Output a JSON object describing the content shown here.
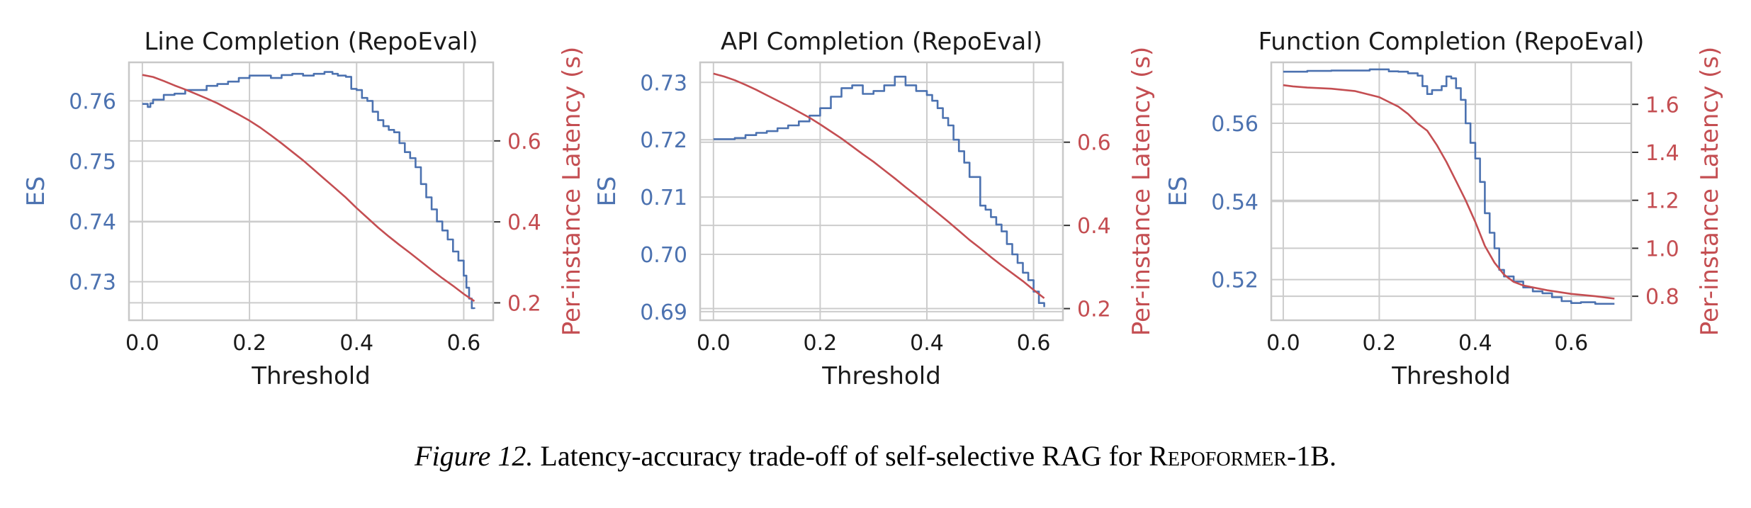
{
  "colors": {
    "es": "#4c72b0",
    "latency": "#c44e52",
    "grid": "#cccccc",
    "frame": "#c8c8c8"
  },
  "caption": {
    "figure_number": "Figure 12.",
    "text_before": "Latency-accuracy trade-off of self-selective RAG for",
    "model_name": "Repoformer",
    "model_suffix": "-1B."
  },
  "chart_data": [
    {
      "type": "line",
      "title": "Line Completion (RepoEval)",
      "xlabel": "Threshold",
      "ylabel": "ES",
      "y2label": "Per-instance Latency (s)",
      "xlim": [
        -0.025,
        0.655
      ],
      "ylim": [
        0.7236,
        0.7664
      ],
      "y2lim": [
        0.157,
        0.794
      ],
      "xticks": [
        "0.0",
        "0.2",
        "0.4",
        "0.6"
      ],
      "yticks": [
        "0.73",
        "0.74",
        "0.75",
        "0.76"
      ],
      "y2ticks": [
        "0.2",
        "0.4",
        "0.6"
      ],
      "grid": true,
      "series": [
        {
          "axis": "left",
          "step": true,
          "x": [
            0.0,
            0.01,
            0.015,
            0.02,
            0.04,
            0.06,
            0.08,
            0.1,
            0.12,
            0.14,
            0.16,
            0.18,
            0.2,
            0.22,
            0.24,
            0.26,
            0.28,
            0.3,
            0.32,
            0.34,
            0.355,
            0.365,
            0.38,
            0.39,
            0.4,
            0.41,
            0.42,
            0.43,
            0.44,
            0.45,
            0.46,
            0.47,
            0.48,
            0.49,
            0.5,
            0.51,
            0.52,
            0.53,
            0.54,
            0.55,
            0.56,
            0.57,
            0.58,
            0.59,
            0.6,
            0.605,
            0.61,
            0.615,
            0.62
          ],
          "values": [
            0.7595,
            0.759,
            0.7596,
            0.7602,
            0.761,
            0.7612,
            0.7618,
            0.7618,
            0.7625,
            0.7628,
            0.7632,
            0.7638,
            0.7642,
            0.7642,
            0.7638,
            0.7643,
            0.7645,
            0.7642,
            0.7645,
            0.7648,
            0.7645,
            0.7642,
            0.764,
            0.762,
            0.7618,
            0.7605,
            0.76,
            0.7582,
            0.7568,
            0.7558,
            0.7552,
            0.7548,
            0.753,
            0.7515,
            0.7505,
            0.749,
            0.7462,
            0.744,
            0.742,
            0.74,
            0.7385,
            0.737,
            0.735,
            0.7335,
            0.731,
            0.729,
            0.7272,
            0.7256,
            0.7255
          ]
        },
        {
          "axis": "right",
          "step": false,
          "x": [
            0.0,
            0.02,
            0.04,
            0.06,
            0.08,
            0.1,
            0.12,
            0.14,
            0.16,
            0.18,
            0.2,
            0.22,
            0.24,
            0.26,
            0.28,
            0.3,
            0.32,
            0.34,
            0.36,
            0.38,
            0.4,
            0.42,
            0.44,
            0.46,
            0.48,
            0.5,
            0.52,
            0.54,
            0.56,
            0.58,
            0.6,
            0.62
          ],
          "values": [
            0.763,
            0.758,
            0.748,
            0.737,
            0.727,
            0.716,
            0.705,
            0.693,
            0.679,
            0.665,
            0.65,
            0.633,
            0.614,
            0.594,
            0.573,
            0.552,
            0.529,
            0.506,
            0.483,
            0.46,
            0.434,
            0.41,
            0.386,
            0.364,
            0.343,
            0.323,
            0.302,
            0.281,
            0.261,
            0.242,
            0.222,
            0.204
          ]
        }
      ]
    },
    {
      "type": "line",
      "title": "API Completion (RepoEval)",
      "xlabel": "Threshold",
      "ylabel": "ES",
      "y2label": "Per-instance Latency (s)",
      "xlim": [
        -0.025,
        0.655
      ],
      "ylim": [
        0.6885,
        0.7335
      ],
      "y2lim": [
        0.172,
        0.792
      ],
      "xticks": [
        "0.0",
        "0.2",
        "0.4",
        "0.6"
      ],
      "yticks": [
        "0.69",
        "0.70",
        "0.71",
        "0.72",
        "0.73"
      ],
      "y2ticks": [
        "0.2",
        "0.4",
        "0.6"
      ],
      "grid": true,
      "series": [
        {
          "axis": "left",
          "step": true,
          "x": [
            0.0,
            0.02,
            0.04,
            0.06,
            0.08,
            0.1,
            0.12,
            0.14,
            0.16,
            0.18,
            0.2,
            0.22,
            0.24,
            0.26,
            0.28,
            0.3,
            0.32,
            0.34,
            0.36,
            0.38,
            0.4,
            0.41,
            0.42,
            0.43,
            0.44,
            0.45,
            0.46,
            0.47,
            0.48,
            0.5,
            0.51,
            0.52,
            0.53,
            0.54,
            0.55,
            0.56,
            0.57,
            0.58,
            0.59,
            0.6,
            0.61,
            0.62
          ],
          "values": [
            0.7201,
            0.7201,
            0.7203,
            0.7208,
            0.7212,
            0.7215,
            0.722,
            0.7225,
            0.7232,
            0.7242,
            0.7255,
            0.7275,
            0.729,
            0.7295,
            0.728,
            0.7285,
            0.7295,
            0.731,
            0.7295,
            0.7285,
            0.7278,
            0.7268,
            0.7255,
            0.7238,
            0.7225,
            0.72,
            0.718,
            0.716,
            0.7135,
            0.7085,
            0.7078,
            0.7065,
            0.7052,
            0.704,
            0.7018,
            0.7,
            0.6985,
            0.6968,
            0.6955,
            0.6935,
            0.6915,
            0.6908
          ]
        },
        {
          "axis": "right",
          "step": false,
          "x": [
            0.0,
            0.02,
            0.04,
            0.06,
            0.08,
            0.1,
            0.12,
            0.14,
            0.16,
            0.18,
            0.2,
            0.22,
            0.24,
            0.26,
            0.28,
            0.3,
            0.32,
            0.34,
            0.36,
            0.38,
            0.4,
            0.42,
            0.44,
            0.46,
            0.48,
            0.5,
            0.52,
            0.54,
            0.56,
            0.58,
            0.6,
            0.62
          ],
          "values": [
            0.765,
            0.758,
            0.749,
            0.738,
            0.726,
            0.713,
            0.7,
            0.687,
            0.673,
            0.659,
            0.643,
            0.626,
            0.609,
            0.59,
            0.571,
            0.553,
            0.533,
            0.513,
            0.492,
            0.472,
            0.451,
            0.43,
            0.409,
            0.387,
            0.365,
            0.345,
            0.324,
            0.304,
            0.285,
            0.266,
            0.245,
            0.225
          ]
        }
      ]
    },
    {
      "type": "line",
      "title": "Function Completion (RepoEval)",
      "xlabel": "Threshold",
      "ylabel": "ES",
      "y2label": "Per-instance Latency (s)",
      "xlim": [
        -0.025,
        0.725
      ],
      "ylim": [
        0.5096,
        0.5756
      ],
      "y2lim": [
        0.7,
        1.775
      ],
      "xticks": [
        "0.0",
        "0.2",
        "0.4",
        "0.6"
      ],
      "yticks": [
        "0.52",
        "0.54",
        "0.56"
      ],
      "y2ticks": [
        "0.8",
        "1.0",
        "1.2",
        "1.4",
        "1.6"
      ],
      "grid": true,
      "series": [
        {
          "axis": "left",
          "step": true,
          "x": [
            0.0,
            0.02,
            0.05,
            0.1,
            0.15,
            0.18,
            0.2,
            0.22,
            0.24,
            0.26,
            0.28,
            0.29,
            0.3,
            0.31,
            0.33,
            0.34,
            0.35,
            0.36,
            0.37,
            0.38,
            0.39,
            0.4,
            0.41,
            0.42,
            0.43,
            0.44,
            0.45,
            0.46,
            0.48,
            0.5,
            0.52,
            0.54,
            0.56,
            0.58,
            0.6,
            0.62,
            0.65,
            0.69
          ],
          "values": [
            0.5732,
            0.5732,
            0.5734,
            0.5735,
            0.5735,
            0.5738,
            0.5738,
            0.5733,
            0.5732,
            0.5728,
            0.5722,
            0.5695,
            0.5675,
            0.5685,
            0.5695,
            0.572,
            0.5715,
            0.569,
            0.566,
            0.56,
            0.555,
            0.551,
            0.545,
            0.537,
            0.532,
            0.528,
            0.5225,
            0.5208,
            0.5195,
            0.518,
            0.517,
            0.5165,
            0.5155,
            0.5145,
            0.514,
            0.5142,
            0.5138,
            0.5138
          ]
        },
        {
          "axis": "right",
          "step": false,
          "x": [
            0.0,
            0.02,
            0.05,
            0.1,
            0.15,
            0.2,
            0.22,
            0.24,
            0.26,
            0.28,
            0.3,
            0.32,
            0.34,
            0.36,
            0.38,
            0.4,
            0.42,
            0.44,
            0.46,
            0.48,
            0.5,
            0.55,
            0.6,
            0.65,
            0.69
          ],
          "values": [
            1.68,
            1.675,
            1.67,
            1.665,
            1.655,
            1.63,
            1.61,
            1.59,
            1.56,
            1.52,
            1.49,
            1.43,
            1.36,
            1.28,
            1.2,
            1.11,
            1.01,
            0.94,
            0.89,
            0.86,
            0.845,
            0.825,
            0.81,
            0.8,
            0.79
          ]
        }
      ]
    }
  ]
}
